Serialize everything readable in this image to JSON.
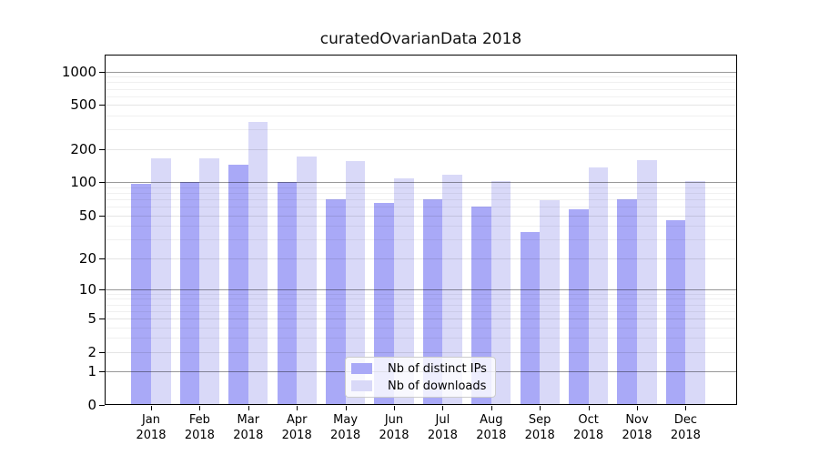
{
  "figure": {
    "background": "#ffffff",
    "axis_color": "#000000"
  },
  "chart_data": {
    "type": "bar",
    "title": "curatedOvarianData 2018",
    "categories": [
      "Jan",
      "Feb",
      "Mar",
      "Apr",
      "May",
      "Jun",
      "Jul",
      "Aug",
      "Sep",
      "Oct",
      "Nov",
      "Dec"
    ],
    "category_year": "2018",
    "series": [
      {
        "name": "Nb of distinct IPs",
        "color": "#a9a9f7",
        "values": [
          97,
          100,
          143,
          100,
          70,
          65,
          70,
          60,
          35,
          57,
          70,
          45
        ]
      },
      {
        "name": "Nb of downloads",
        "color": "#d9d9f8",
        "values": [
          165,
          165,
          350,
          170,
          157,
          109,
          117,
          103,
          69,
          135,
          160,
          102
        ]
      }
    ],
    "y_scale": "log10(1+v)",
    "ylim": [
      0,
      1450
    ],
    "y_axis": {
      "tick_values": [
        0,
        1,
        2,
        5,
        10,
        20,
        50,
        100,
        200,
        500,
        1000
      ],
      "tick_labels": [
        "0",
        "1",
        "2",
        "5",
        "10",
        "20",
        "50",
        "100",
        "200",
        "500",
        "1000"
      ],
      "decade_lines": [
        1,
        10,
        100,
        1000
      ],
      "minor_lines": [
        3,
        4,
        6,
        7,
        8,
        9,
        30,
        40,
        60,
        70,
        80,
        90,
        300,
        400,
        600,
        700,
        800,
        900
      ]
    },
    "grid": true,
    "grid_colors": {
      "decade": "rgba(0,0,0,0.40)",
      "labeled": "rgba(0,0,0,0.10)",
      "minor": "rgba(0,0,0,0.06)"
    },
    "legend_position": "bottom-center-inside"
  }
}
